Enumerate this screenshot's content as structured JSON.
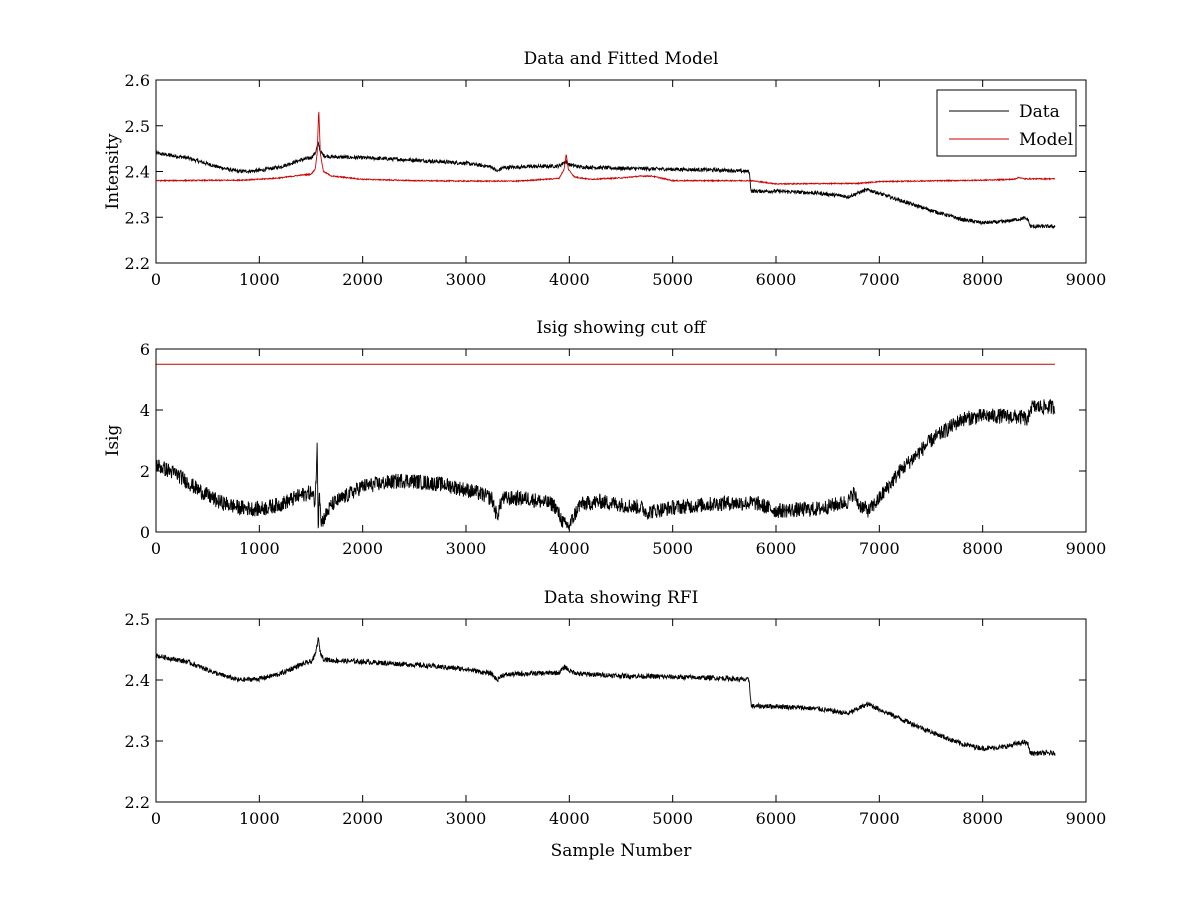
{
  "chart_data": [
    {
      "type": "line",
      "title": "Data and Fitted Model",
      "xlabel": "",
      "ylabel": "Intensity",
      "xlim": [
        0,
        9000
      ],
      "ylim": [
        2.2,
        2.6
      ],
      "xticks": [
        0,
        1000,
        2000,
        3000,
        4000,
        5000,
        6000,
        7000,
        8000,
        9000
      ],
      "xtick_labels": [
        "0",
        "1000",
        "2000",
        "3000",
        "4000",
        "5000",
        "6000",
        "7000",
        "8000",
        "9000"
      ],
      "yticks": [
        2.2,
        2.3,
        2.4,
        2.5,
        2.6
      ],
      "ytick_labels": [
        "2.2",
        "2.3",
        "2.4",
        "2.5",
        "2.6"
      ],
      "grid": false,
      "legend": {
        "position": "top-right",
        "entries": [
          "Data",
          "Model"
        ]
      },
      "series": [
        {
          "name": "Data",
          "color": "#000000",
          "noise": 0.004,
          "x": [
            0,
            300,
            600,
            800,
            1000,
            1200,
            1400,
            1500,
            1540,
            1570,
            1590,
            1620,
            1700,
            2000,
            2500,
            3000,
            3250,
            3300,
            3350,
            3500,
            3900,
            3960,
            4000,
            4100,
            4500,
            5000,
            5500,
            5740,
            5760,
            6000,
            6400,
            6700,
            6850,
            6900,
            7000,
            7200,
            7500,
            7800,
            8000,
            8200,
            8400,
            8440,
            8460,
            8700
          ],
          "y": [
            2.44,
            2.43,
            2.41,
            2.4,
            2.402,
            2.41,
            2.425,
            2.43,
            2.44,
            2.462,
            2.445,
            2.435,
            2.432,
            2.43,
            2.425,
            2.418,
            2.41,
            2.4,
            2.408,
            2.41,
            2.412,
            2.422,
            2.415,
            2.41,
            2.407,
            2.405,
            2.403,
            2.4,
            2.357,
            2.357,
            2.353,
            2.345,
            2.358,
            2.36,
            2.352,
            2.337,
            2.315,
            2.295,
            2.288,
            2.29,
            2.298,
            2.295,
            2.28,
            2.28
          ]
        },
        {
          "name": "Model",
          "color": "#cc0000",
          "noise": 0.0012,
          "x": [
            0,
            800,
            1000,
            1200,
            1400,
            1500,
            1540,
            1560,
            1575,
            1590,
            1620,
            1700,
            2000,
            2500,
            3000,
            3500,
            3900,
            3950,
            3970,
            3990,
            4050,
            4200,
            4500,
            4700,
            4800,
            5000,
            5760,
            6000,
            6800,
            7000,
            8000,
            8300,
            8350,
            8400,
            8700
          ],
          "y": [
            2.38,
            2.381,
            2.383,
            2.386,
            2.392,
            2.394,
            2.405,
            2.44,
            2.538,
            2.44,
            2.4,
            2.39,
            2.383,
            2.38,
            2.379,
            2.379,
            2.385,
            2.405,
            2.438,
            2.405,
            2.388,
            2.383,
            2.386,
            2.39,
            2.39,
            2.38,
            2.38,
            2.373,
            2.374,
            2.378,
            2.381,
            2.383,
            2.387,
            2.384,
            2.384
          ]
        }
      ]
    },
    {
      "type": "line",
      "title": "Isig showing cut off",
      "xlabel": "",
      "ylabel": "Isig",
      "xlim": [
        0,
        9000
      ],
      "ylim": [
        0,
        6
      ],
      "xticks": [
        0,
        1000,
        2000,
        3000,
        4000,
        5000,
        6000,
        7000,
        8000,
        9000
      ],
      "xtick_labels": [
        "0",
        "1000",
        "2000",
        "3000",
        "4000",
        "5000",
        "6000",
        "7000",
        "8000",
        "9000"
      ],
      "yticks": [
        0,
        2,
        4,
        6
      ],
      "ytick_labels": [
        "0",
        "2",
        "4",
        "6"
      ],
      "grid": false,
      "series": [
        {
          "color": "#000000",
          "noise": 0.25,
          "x": [
            0,
            200,
            400,
            600,
            800,
            1000,
            1200,
            1400,
            1500,
            1540,
            1560,
            1570,
            1580,
            1600,
            1700,
            2000,
            2400,
            2800,
            3100,
            3250,
            3300,
            3350,
            3600,
            3850,
            3950,
            4000,
            4100,
            4300,
            4700,
            4750,
            5000,
            5500,
            5800,
            6000,
            6400,
            6700,
            6750,
            6800,
            6900,
            7000,
            7200,
            7500,
            7800,
            8000,
            8200,
            8400,
            8440,
            8460,
            8700
          ],
          "y": [
            2.2,
            1.9,
            1.4,
            1.0,
            0.8,
            0.75,
            0.9,
            1.2,
            1.3,
            1.0,
            2.8,
            0.1,
            1.5,
            0.3,
            0.9,
            1.5,
            1.7,
            1.55,
            1.3,
            1.1,
            0.5,
            1.1,
            1.1,
            0.9,
            0.25,
            0.2,
            0.9,
            1.0,
            0.8,
            0.65,
            0.8,
            0.95,
            0.95,
            0.7,
            0.75,
            1.0,
            1.3,
            0.9,
            0.7,
            1.1,
            2.0,
            3.0,
            3.7,
            3.8,
            3.8,
            3.75,
            3.6,
            4.1,
            4.1
          ]
        },
        {
          "color": "#cc0000",
          "noise": 0,
          "x": [
            0,
            8700
          ],
          "y": [
            5.5,
            5.5
          ]
        }
      ]
    },
    {
      "type": "line",
      "title": "Data showing RFI",
      "xlabel": "Sample Number",
      "ylabel": "",
      "xlim": [
        0,
        9000
      ],
      "ylim": [
        2.2,
        2.5
      ],
      "xticks": [
        0,
        1000,
        2000,
        3000,
        4000,
        5000,
        6000,
        7000,
        8000,
        9000
      ],
      "xtick_labels": [
        "0",
        "1000",
        "2000",
        "3000",
        "4000",
        "5000",
        "6000",
        "7000",
        "8000",
        "9000"
      ],
      "yticks": [
        2.2,
        2.3,
        2.4,
        2.5
      ],
      "ytick_labels": [
        "2.2",
        "2.3",
        "2.4",
        "2.5"
      ],
      "grid": false,
      "series": [
        {
          "color": "#000000",
          "noise": 0.004,
          "x": [
            0,
            300,
            600,
            800,
            1000,
            1200,
            1400,
            1500,
            1540,
            1570,
            1590,
            1620,
            1700,
            2000,
            2500,
            3000,
            3250,
            3300,
            3350,
            3500,
            3900,
            3960,
            4000,
            4100,
            4500,
            5000,
            5500,
            5740,
            5760,
            6000,
            6400,
            6700,
            6850,
            6900,
            7000,
            7200,
            7500,
            7800,
            8000,
            8200,
            8400,
            8440,
            8460,
            8700
          ],
          "y": [
            2.44,
            2.43,
            2.41,
            2.4,
            2.402,
            2.41,
            2.425,
            2.43,
            2.44,
            2.468,
            2.445,
            2.435,
            2.432,
            2.43,
            2.425,
            2.418,
            2.41,
            2.4,
            2.408,
            2.41,
            2.412,
            2.422,
            2.415,
            2.41,
            2.407,
            2.405,
            2.403,
            2.4,
            2.357,
            2.357,
            2.353,
            2.345,
            2.358,
            2.36,
            2.352,
            2.337,
            2.315,
            2.295,
            2.288,
            2.29,
            2.298,
            2.295,
            2.28,
            2.28
          ]
        }
      ]
    }
  ]
}
